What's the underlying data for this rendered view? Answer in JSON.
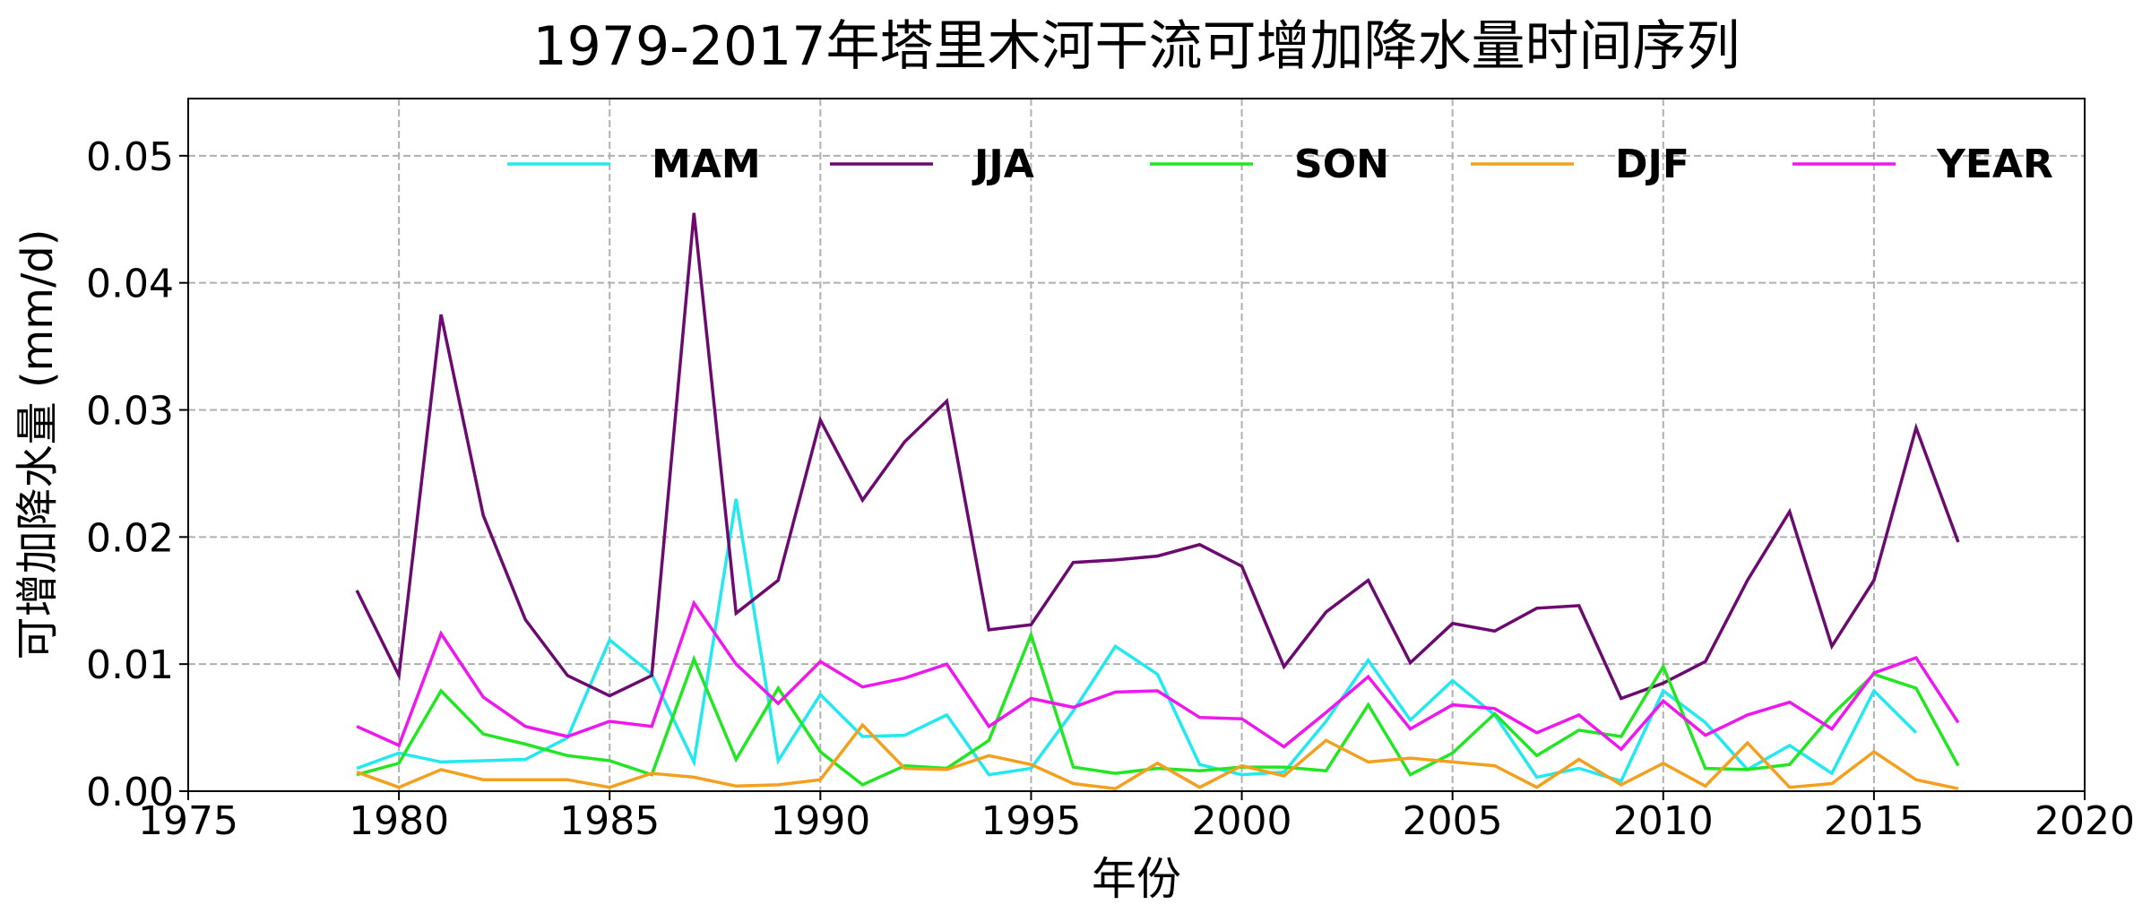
{
  "chart_data": {
    "type": "line",
    "title": "1979-2017年塔里木河干流可增加降水量时间序列",
    "xlabel": "年份",
    "ylabel": "可增加降水量 (mm/d)",
    "xlim": [
      1975,
      2020
    ],
    "ylim": [
      0,
      0.0545
    ],
    "xticks": [
      1975,
      1980,
      1985,
      1990,
      1995,
      2000,
      2005,
      2010,
      2015,
      2020
    ],
    "xtick_labels": [
      "1975",
      "1980",
      "1985",
      "1990",
      "1995",
      "2000",
      "2005",
      "2010",
      "2015",
      "2020"
    ],
    "yticks": [
      0,
      0.01,
      0.02,
      0.03,
      0.04,
      0.05
    ],
    "ytick_labels": [
      "0.00",
      "0.01",
      "0.02",
      "0.03",
      "0.04",
      "0.05"
    ],
    "grid": true,
    "legend_placement": "top",
    "x": [
      1979,
      1980,
      1981,
      1982,
      1983,
      1984,
      1985,
      1986,
      1987,
      1988,
      1989,
      1990,
      1991,
      1992,
      1993,
      1994,
      1995,
      1996,
      1997,
      1998,
      1999,
      2000,
      2001,
      2002,
      2003,
      2004,
      2005,
      2006,
      2007,
      2008,
      2009,
      2010,
      2011,
      2012,
      2013,
      2014,
      2015,
      2016,
      2017
    ],
    "series": [
      {
        "name": "MAM",
        "color": "#22e8f0",
        "values": [
          0.0018,
          0.003,
          0.0023,
          0.0024,
          0.0025,
          0.0042,
          0.0119,
          0.0092,
          0.0023,
          0.023,
          0.0024,
          0.0076,
          0.0043,
          0.0044,
          0.006,
          0.0013,
          0.0018,
          0.0063,
          0.0114,
          0.0092,
          0.0021,
          0.0013,
          0.0015,
          0.0055,
          0.0103,
          0.0056,
          0.0087,
          0.006,
          0.0011,
          0.0018,
          0.0008,
          0.0079,
          0.0054,
          0.0017,
          0.0036,
          0.0014,
          0.0079,
          0.0046,
          null
        ]
      },
      {
        "name": "JJA",
        "color": "#6b0a6f",
        "values": [
          0.0158,
          0.0091,
          0.0375,
          0.0217,
          0.0135,
          0.0091,
          0.0075,
          0.0091,
          0.0455,
          0.014,
          0.0166,
          0.0292,
          0.0229,
          0.0275,
          0.0307,
          0.0127,
          0.0131,
          0.018,
          0.0182,
          0.0185,
          0.0194,
          0.0177,
          0.0098,
          0.0141,
          0.0166,
          0.0101,
          0.0132,
          0.0126,
          0.0144,
          0.0146,
          0.0073,
          0.0085,
          0.0102,
          0.0166,
          0.022,
          0.0114,
          0.0166,
          0.0286,
          0.0196
        ]
      },
      {
        "name": "SON",
        "color": "#22e622",
        "values": [
          0.0013,
          0.0022,
          0.0079,
          0.0045,
          0.0037,
          0.0028,
          0.0024,
          0.0013,
          0.0104,
          0.0025,
          0.0081,
          0.0031,
          0.0005,
          0.002,
          0.0018,
          0.004,
          0.0123,
          0.0019,
          0.0014,
          0.0018,
          0.0016,
          0.0019,
          0.0019,
          0.0016,
          0.0068,
          0.0013,
          0.003,
          0.0061,
          0.0028,
          0.0048,
          0.0043,
          0.0098,
          0.0018,
          0.0017,
          0.0021,
          0.006,
          0.0092,
          0.0081,
          0.002
        ]
      },
      {
        "name": "DJF",
        "color": "#f2a01e",
        "values": [
          0.0015,
          0.0003,
          0.0017,
          0.0009,
          0.0009,
          0.0009,
          0.0003,
          0.0014,
          0.0011,
          0.0004,
          0.0005,
          0.0009,
          0.0052,
          0.0018,
          0.0017,
          0.0028,
          0.0021,
          0.0006,
          0.0002,
          0.0022,
          0.0003,
          0.002,
          0.0012,
          0.004,
          0.0023,
          0.0026,
          0.0023,
          0.002,
          0.0003,
          0.0025,
          0.0005,
          0.0022,
          0.0004,
          0.0038,
          0.0003,
          0.0006,
          0.0031,
          0.0009,
          0.0002
        ]
      },
      {
        "name": "YEAR",
        "color": "#ee18ee",
        "values": [
          0.0051,
          0.0036,
          0.0124,
          0.0074,
          0.0051,
          0.0043,
          0.0055,
          0.0051,
          0.0148,
          0.01,
          0.0069,
          0.0102,
          0.0082,
          0.0089,
          0.01,
          0.0051,
          0.0073,
          0.0066,
          0.0078,
          0.0079,
          0.0058,
          0.0057,
          0.0035,
          0.0062,
          0.009,
          0.0049,
          0.0068,
          0.0065,
          0.0046,
          0.006,
          0.0033,
          0.0071,
          0.0044,
          0.006,
          0.007,
          0.0049,
          0.0093,
          0.0105,
          0.0054
        ]
      }
    ]
  }
}
